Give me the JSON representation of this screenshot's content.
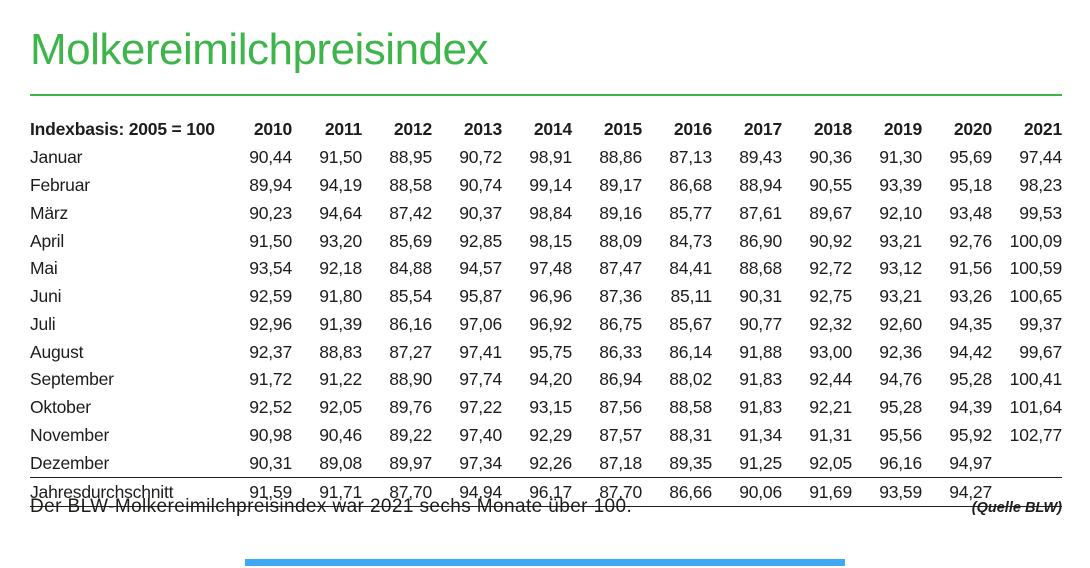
{
  "page": {
    "title": "Molkereimilchpreisindex",
    "caption": "Der BLW-Molkereimilchpreisindex war 2021 sechs Monate über 100.",
    "source": "(Quelle BLW)",
    "accent_green": "#3eb54a",
    "accent_blue": "#3fa9f5",
    "text_color": "#1d1d1b"
  },
  "chart_data": {
    "type": "table",
    "title": "Molkereimilchpreisindex",
    "header_label": "Indexbasis: 2005 = 100",
    "columns": [
      "2010",
      "2011",
      "2012",
      "2013",
      "2014",
      "2015",
      "2016",
      "2017",
      "2018",
      "2019",
      "2020",
      "2021"
    ],
    "rows": [
      {
        "label": "Januar",
        "values": [
          "90,44",
          "91,50",
          "88,95",
          "90,72",
          "98,91",
          "88,86",
          "87,13",
          "89,43",
          "90,36",
          "91,30",
          "95,69",
          "97,44"
        ]
      },
      {
        "label": "Februar",
        "values": [
          "89,94",
          "94,19",
          "88,58",
          "90,74",
          "99,14",
          "89,17",
          "86,68",
          "88,94",
          "90,55",
          "93,39",
          "95,18",
          "98,23"
        ]
      },
      {
        "label": "März",
        "values": [
          "90,23",
          "94,64",
          "87,42",
          "90,37",
          "98,84",
          "89,16",
          "85,77",
          "87,61",
          "89,67",
          "92,10",
          "93,48",
          "99,53"
        ]
      },
      {
        "label": "April",
        "values": [
          "91,50",
          "93,20",
          "85,69",
          "92,85",
          "98,15",
          "88,09",
          "84,73",
          "86,90",
          "90,92",
          "93,21",
          "92,76",
          "100,09"
        ]
      },
      {
        "label": "Mai",
        "values": [
          "93,54",
          "92,18",
          "84,88",
          "94,57",
          "97,48",
          "87,47",
          "84,41",
          "88,68",
          "92,72",
          "93,12",
          "91,56",
          "100,59"
        ]
      },
      {
        "label": "Juni",
        "values": [
          "92,59",
          "91,80",
          "85,54",
          "95,87",
          "96,96",
          "87,36",
          "85,11",
          "90,31",
          "92,75",
          "93,21",
          "93,26",
          "100,65"
        ]
      },
      {
        "label": "Juli",
        "values": [
          "92,96",
          "91,39",
          "86,16",
          "97,06",
          "96,92",
          "86,75",
          "85,67",
          "90,77",
          "92,32",
          "92,60",
          "94,35",
          "99,37"
        ]
      },
      {
        "label": "August",
        "values": [
          "92,37",
          "88,83",
          "87,27",
          "97,41",
          "95,75",
          "86,33",
          "86,14",
          "91,88",
          "93,00",
          "92,36",
          "94,42",
          "99,67"
        ]
      },
      {
        "label": "September",
        "values": [
          "91,72",
          "91,22",
          "88,90",
          "97,74",
          "94,20",
          "86,94",
          "88,02",
          "91,83",
          "92,44",
          "94,76",
          "95,28",
          "100,41"
        ]
      },
      {
        "label": "Oktober",
        "values": [
          "92,52",
          "92,05",
          "89,76",
          "97,22",
          "93,15",
          "87,56",
          "88,58",
          "91,83",
          "92,21",
          "95,28",
          "94,39",
          "101,64"
        ]
      },
      {
        "label": "November",
        "values": [
          "90,98",
          "90,46",
          "89,22",
          "97,40",
          "92,29",
          "87,57",
          "88,31",
          "91,34",
          "91,31",
          "95,56",
          "95,92",
          "102,77"
        ]
      },
      {
        "label": "Dezember",
        "values": [
          "90,31",
          "89,08",
          "89,97",
          "97,34",
          "92,26",
          "87,18",
          "89,35",
          "91,25",
          "92,05",
          "96,16",
          "94,97",
          ""
        ]
      },
      {
        "label": "Jahresdurchschnitt",
        "values": [
          "91,59",
          "91,71",
          "87,70",
          "94,94",
          "96,17",
          "87,70",
          "86,66",
          "90,06",
          "91,69",
          "93,59",
          "94,27",
          ""
        ]
      }
    ]
  }
}
